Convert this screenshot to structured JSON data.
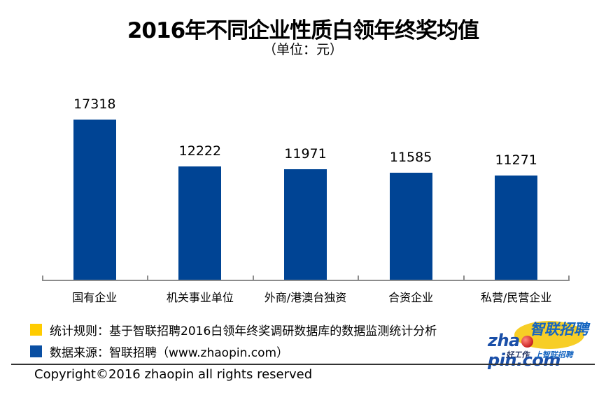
{
  "header": {
    "title": "2016年不同企业性质白领年终奖均值",
    "subtitle": "（单位：元）"
  },
  "chart_data": {
    "type": "bar",
    "title": "2016年不同企业性质白领年终奖均值",
    "subtitle": "（单位：元）",
    "xlabel": "",
    "ylabel": "",
    "unit": "元",
    "categories": [
      "国有企业",
      "机关事业单位",
      "外商/港澳台独资",
      "合资企业",
      "私营/民营企业"
    ],
    "values": [
      17318,
      12222,
      11971,
      11585,
      11271
    ],
    "value_labels": [
      "17318",
      "12222",
      "11971",
      "11585",
      "11271"
    ],
    "bar_color": "#004494",
    "grid": false,
    "legend_position": "none",
    "data_labels": true
  },
  "notes": [
    {
      "marker_color": "#ffcc00",
      "text": "统计规则：基于智联招聘2016白领年终奖调研数据库的数据监测统计分析"
    },
    {
      "marker_color": "#0a4fa3",
      "text": "数据来源：智联招聘（www.zhaopin.com）"
    }
  ],
  "logo": {
    "cn": "智联招聘",
    "en_left": "zha",
    "en_right": "pin.com",
    "slogan_a": "好工作",
    "slogan_b": "上智联招聘"
  },
  "footer": {
    "copyright": "Copyright©2016 zhaopin all rights reserved"
  }
}
